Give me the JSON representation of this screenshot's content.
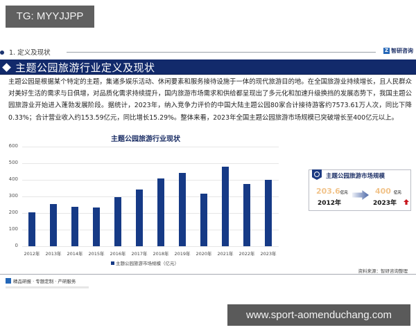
{
  "overlay": {
    "tg_badge": "TG: MYYJJPP",
    "url_badge": "www.sport-aomenduchang.com"
  },
  "section": {
    "label": "1. 定义及现状",
    "brand": "智研咨询",
    "brand_icon": "zhiyan-logo-icon"
  },
  "title_bar": {
    "title": "主题公园旅游行业定义及现状"
  },
  "paragraph": "主题公园是根据某个特定的主题，集诸多娱乐活动、休闲要素和服务接待设施于一体的现代旅游目的地。在全国旅游业持续增长，且人民群众对美好生活的需求与日俱增，对品质化需求持续提升，国内旅游市场需求和供给都呈现出了多元化和加速升级换挡的发展态势下，我国主题公园旅游业开始进入蓬勃发展阶段。据统计，2023年，纳入竞争力评价的中国大陆主题公园80家合计接待游客约7573.61万人次，同比下降0.33%；合计营业收入约153.59亿元，同比增长15.29%。整体来看，2023年全国主题公园旅游市场规模已突破增长至400亿元以上。",
  "chart_data": {
    "type": "bar",
    "title": "主题公园旅游行业现状",
    "categories": [
      "2012年",
      "2013年",
      "2014年",
      "2015年",
      "2016年",
      "2017年",
      "2018年",
      "2019年",
      "2020年",
      "2021年",
      "2022年",
      "2023年"
    ],
    "series": [
      {
        "name": "主题公园旅游市场规模（亿元）",
        "color": "#163a86",
        "values": [
          203.6,
          254,
          236,
          233,
          296,
          340,
          408,
          442,
          318,
          479,
          376,
          400
        ]
      }
    ],
    "xlabel": "",
    "ylabel": "",
    "yticks": [
      "0",
      "100",
      "200",
      "300",
      "400",
      "500",
      "600"
    ],
    "ylim": [
      0,
      600
    ],
    "grid": true,
    "legend_position": "bottom"
  },
  "stat_card": {
    "title": "主题公园旅游市场规模",
    "left_value": "203.6",
    "left_unit": "亿元",
    "left_year": "2012年",
    "right_value": "400",
    "right_unit": "亿元",
    "right_year": "2023年",
    "value_color": "#f1c38a",
    "trend_icon": "up-arrow-icon",
    "trend_color": "#c8161d"
  },
  "source": "资料来源：智研咨询整理",
  "footer": {
    "text": "精品研报 · 专题定制 · 产研服务"
  },
  "colors": {
    "primary": "#122a6b",
    "bar": "#163a86"
  }
}
